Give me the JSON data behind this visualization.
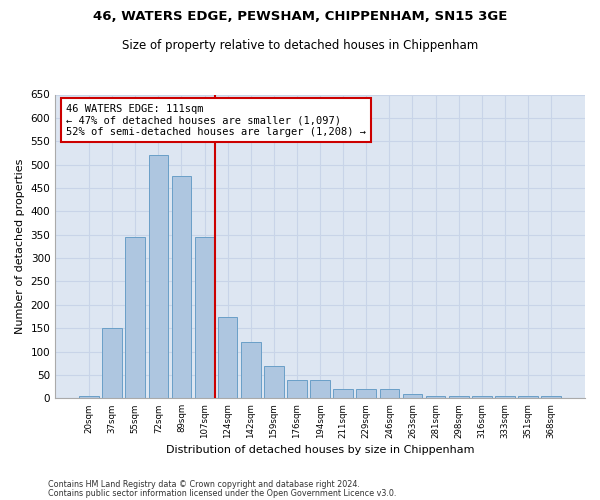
{
  "title1": "46, WATERS EDGE, PEWSHAM, CHIPPENHAM, SN15 3GE",
  "title2": "Size of property relative to detached houses in Chippenham",
  "xlabel": "Distribution of detached houses by size in Chippenham",
  "ylabel": "Number of detached properties",
  "categories": [
    "20sqm",
    "37sqm",
    "55sqm",
    "72sqm",
    "89sqm",
    "107sqm",
    "124sqm",
    "142sqm",
    "159sqm",
    "176sqm",
    "194sqm",
    "211sqm",
    "229sqm",
    "246sqm",
    "263sqm",
    "281sqm",
    "298sqm",
    "316sqm",
    "333sqm",
    "351sqm",
    "368sqm"
  ],
  "values": [
    5,
    150,
    345,
    520,
    475,
    345,
    175,
    120,
    70,
    40,
    40,
    20,
    20,
    20,
    10,
    5,
    5,
    5,
    5,
    5,
    5
  ],
  "bar_color": "#aec6e0",
  "bar_edge_color": "#6a9fc8",
  "property_label": "46 WATERS EDGE: 111sqm",
  "annotation_line1": "← 47% of detached houses are smaller (1,097)",
  "annotation_line2": "52% of semi-detached houses are larger (1,208) →",
  "red_line_color": "#cc0000",
  "annotation_box_color": "#ffffff",
  "annotation_box_edge": "#cc0000",
  "ylim": [
    0,
    650
  ],
  "yticks": [
    0,
    50,
    100,
    150,
    200,
    250,
    300,
    350,
    400,
    450,
    500,
    550,
    600,
    650
  ],
  "grid_color": "#c8d4e8",
  "bg_color": "#dde6f2",
  "footer1": "Contains HM Land Registry data © Crown copyright and database right 2024.",
  "footer2": "Contains public sector information licensed under the Open Government Licence v3.0."
}
